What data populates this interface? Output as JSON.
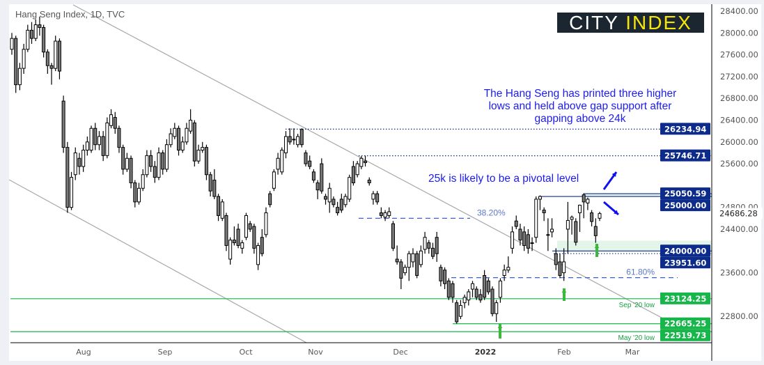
{
  "chart_data": {
    "type": "candlestick",
    "title": "Hang Seng Index, 1D, TVC",
    "ylim": [
      22400,
      28600
    ],
    "y_ticks": [
      28400,
      28000,
      27600,
      27200,
      26800,
      26400,
      26000,
      25600,
      24800,
      24400,
      23600,
      22800
    ],
    "x_ticks": [
      "Aug",
      "Sep",
      "Oct",
      "Nov",
      "Dec",
      "2022",
      "Feb",
      "Mar"
    ],
    "grid": false,
    "ohlc": [
      [
        27700,
        28000,
        27600,
        27900
      ],
      [
        27900,
        27950,
        26900,
        27050
      ],
      [
        27050,
        27450,
        26950,
        27350
      ],
      [
        27350,
        27800,
        27250,
        27700
      ],
      [
        27700,
        28150,
        27650,
        28050
      ],
      [
        28050,
        28200,
        27800,
        27900
      ],
      [
        27900,
        28250,
        27850,
        28150
      ],
      [
        28150,
        28300,
        27950,
        28100
      ],
      [
        28100,
        28150,
        27550,
        27650
      ],
      [
        27650,
        27700,
        27250,
        27400
      ],
      [
        27400,
        27450,
        27050,
        27350
      ],
      [
        27350,
        27950,
        27300,
        27850
      ],
      [
        27850,
        27900,
        27150,
        27300
      ],
      [
        26750,
        26850,
        25800,
        25900
      ],
      [
        25900,
        26000,
        24700,
        24800
      ],
      [
        24800,
        25450,
        24750,
        25350
      ],
      [
        25400,
        25900,
        25300,
        25800
      ],
      [
        25700,
        25800,
        25400,
        25550
      ],
      [
        25550,
        25950,
        25450,
        25850
      ],
      [
        25850,
        26100,
        25750,
        26000
      ],
      [
        25850,
        26300,
        25800,
        26250
      ],
      [
        26250,
        26350,
        25850,
        25950
      ],
      [
        25950,
        26200,
        25850,
        26100
      ],
      [
        26100,
        26200,
        25650,
        25750
      ],
      [
        25750,
        26450,
        25700,
        26350
      ],
      [
        26300,
        26600,
        26250,
        26500
      ],
      [
        26450,
        26550,
        26150,
        26250
      ],
      [
        26250,
        26300,
        25800,
        25900
      ],
      [
        25900,
        25950,
        25400,
        25500
      ],
      [
        25500,
        25800,
        25450,
        25700
      ],
      [
        25700,
        25750,
        25150,
        25250
      ],
      [
        25250,
        25300,
        24800,
        24900
      ],
      [
        24900,
        25250,
        24850,
        25150
      ],
      [
        25150,
        25500,
        25100,
        25400
      ],
      [
        25400,
        25850,
        25350,
        25750
      ],
      [
        25750,
        25850,
        25450,
        25550
      ],
      [
        25550,
        25650,
        25250,
        25350
      ],
      [
        25350,
        25900,
        25300,
        25800
      ],
      [
        25800,
        25850,
        25400,
        25500
      ],
      [
        25500,
        26050,
        25450,
        25950
      ],
      [
        25950,
        26250,
        25900,
        26150
      ],
      [
        26100,
        26350,
        26050,
        26250
      ],
      [
        26250,
        26300,
        25750,
        25850
      ],
      [
        25850,
        26100,
        25800,
        26000
      ],
      [
        26000,
        26350,
        25950,
        26250
      ],
      [
        26200,
        26600,
        26150,
        26400
      ],
      [
        26350,
        26400,
        25550,
        25650
      ],
      [
        25650,
        25950,
        25600,
        25850
      ],
      [
        25850,
        26000,
        25800,
        25900
      ],
      [
        25900,
        25950,
        25300,
        25400
      ],
      [
        25400,
        25450,
        25000,
        25100
      ],
      [
        25300,
        25500,
        24950,
        25000
      ],
      [
        25000,
        25050,
        24550,
        24650
      ],
      [
        24600,
        24950,
        24550,
        24900
      ],
      [
        24650,
        24700,
        24000,
        24100
      ],
      [
        23850,
        24250,
        23750,
        24200
      ],
      [
        24200,
        24450,
        24100,
        24150
      ],
      [
        24400,
        24500,
        24050,
        24100
      ],
      [
        24050,
        24200,
        23950,
        24150
      ],
      [
        24250,
        24700,
        24200,
        24650
      ],
      [
        24500,
        24550,
        24350,
        24400
      ],
      [
        24450,
        24500,
        23950,
        24050
      ],
      [
        23750,
        24150,
        23650,
        24100
      ],
      [
        24250,
        24400,
        23900,
        23950
      ],
      [
        24300,
        24800,
        24250,
        24700
      ],
      [
        25050,
        25100,
        24800,
        24850
      ],
      [
        25150,
        25500,
        25100,
        25450
      ],
      [
        25500,
        25800,
        25400,
        25700
      ],
      [
        25450,
        25900,
        25400,
        25850
      ],
      [
        25800,
        26200,
        25700,
        26100
      ],
      [
        26100,
        26250,
        25950,
        26000
      ],
      [
        26050,
        26250,
        25950,
        26050
      ],
      [
        25950,
        26150,
        25900,
        26100
      ],
      [
        26230,
        26250,
        25900,
        25950
      ],
      [
        25800,
        25850,
        25550,
        25600
      ],
      [
        25650,
        25750,
        25500,
        25550
      ],
      [
        25450,
        25500,
        25250,
        25300
      ],
      [
        25250,
        25300,
        24950,
        25120
      ],
      [
        25600,
        25700,
        25050,
        25100
      ],
      [
        25000,
        25050,
        24850,
        24950
      ],
      [
        24900,
        25250,
        24700,
        25150
      ],
      [
        24950,
        25000,
        24800,
        24850
      ],
      [
        24800,
        24900,
        24650,
        24700
      ],
      [
        24950,
        25050,
        24700,
        24750
      ],
      [
        24850,
        25050,
        24800,
        25000
      ],
      [
        24950,
        25400,
        24900,
        25350
      ],
      [
        25550,
        25650,
        25200,
        25250
      ],
      [
        25400,
        25650,
        25350,
        25600
      ],
      [
        25550,
        25740,
        25500,
        25700
      ],
      [
        25650,
        25747,
        25550,
        25620
      ],
      [
        25300,
        25350,
        25200,
        25250
      ],
      [
        24950,
        25100,
        24850,
        25050
      ],
      [
        25050,
        25100,
        24850,
        24900
      ],
      [
        24700,
        24800,
        24600,
        24650
      ],
      [
        24620,
        24750,
        24550,
        24700
      ],
      [
        24650,
        24800,
        24600,
        24720
      ],
      [
        24500,
        24550,
        24000,
        24050
      ],
      [
        23850,
        24100,
        23750,
        23800
      ],
      [
        23800,
        23850,
        23300,
        23500
      ],
      [
        23600,
        23750,
        23550,
        23700
      ],
      [
        23700,
        24000,
        23450,
        23950
      ],
      [
        23800,
        24050,
        23700,
        23950
      ],
      [
        23950,
        24000,
        23500,
        23550
      ],
      [
        23750,
        24100,
        23700,
        24000
      ],
      [
        24030,
        24350,
        23950,
        24250
      ],
      [
        24150,
        24200,
        23950,
        24050
      ],
      [
        24050,
        24150,
        23850,
        23900
      ],
      [
        24250,
        24350,
        23800,
        23950
      ],
      [
        23700,
        23750,
        23350,
        23450
      ],
      [
        23650,
        23700,
        23300,
        23400
      ],
      [
        23450,
        23500,
        23100,
        23150
      ],
      [
        23400,
        23450,
        23050,
        23150
      ],
      [
        23050,
        23100,
        22665,
        22700
      ],
      [
        22800,
        23100,
        22750,
        23000
      ],
      [
        23050,
        23200,
        22950,
        23150
      ],
      [
        23100,
        23300,
        23000,
        23250
      ],
      [
        23300,
        23450,
        23150,
        23400
      ],
      [
        23300,
        23350,
        23100,
        23150
      ],
      [
        23200,
        23300,
        23050,
        23100
      ],
      [
        23550,
        23650,
        23100,
        23150
      ],
      [
        23450,
        23500,
        23200,
        23250
      ],
      [
        23300,
        23350,
        22800,
        22850
      ],
      [
        22850,
        23100,
        22700,
        23050
      ],
      [
        23150,
        23500,
        23050,
        23450
      ],
      [
        23550,
        23750,
        23450,
        23650
      ],
      [
        23650,
        23900,
        23600,
        23700
      ],
      [
        24050,
        24450,
        23950,
        24350
      ],
      [
        24550,
        24650,
        24400,
        24450
      ],
      [
        24400,
        24500,
        24100,
        24200
      ],
      [
        24350,
        24450,
        24000,
        24100
      ],
      [
        24300,
        24400,
        23950,
        24050
      ],
      [
        24150,
        24250,
        24000,
        24150
      ],
      [
        24250,
        25000,
        24150,
        24950
      ],
      [
        24950,
        25020,
        24750,
        25000
      ],
      [
        24750,
        24800,
        24550,
        24700
      ],
      [
        24300,
        24600,
        24000,
        24300
      ],
      [
        24350,
        24600,
        24250,
        24400
      ],
      [
        23950,
        24050,
        23650,
        23750
      ],
      [
        23800,
        23950,
        23500,
        23550
      ],
      [
        23600,
        24050,
        23450,
        23800
      ],
      [
        24400,
        24900,
        23950,
        24560
      ],
      [
        24580,
        24650,
        24300,
        24620
      ],
      [
        24540,
        24600,
        24100,
        24160
      ],
      [
        24700,
        24850,
        24350,
        24840
      ],
      [
        25030,
        25060,
        24600,
        24900
      ],
      [
        24880,
        24980,
        24750,
        24950
      ],
      [
        24700,
        24750,
        24450,
        24540
      ],
      [
        24450,
        24600,
        24150,
        24280
      ],
      [
        24600,
        24720,
        24550,
        24686
      ]
    ],
    "levels": [
      {
        "value": 26234.94,
        "label": "26234.94",
        "style": "dotted",
        "color": "#0d2b8a"
      },
      {
        "value": 25746.71,
        "label": "25746.71",
        "style": "dotted",
        "color": "#0d2b8a"
      },
      {
        "value": 25050.59,
        "label": "25050.59",
        "style": "solid",
        "color": "#0d2b8a"
      },
      {
        "value": 25000.0,
        "label": "25000.00",
        "style": "solid",
        "color": "#0d2b8a"
      },
      {
        "value": 24000.0,
        "label": "24000.00",
        "style": "solid",
        "color": "#0d2b8a"
      },
      {
        "value": 23951.6,
        "label": "23951.60",
        "style": "dotted",
        "color": "#0d2b8a"
      },
      {
        "value": 23124.25,
        "label": "23124.25",
        "style": "solid",
        "color": "#16b64a",
        "note": "Sep '20 low"
      },
      {
        "value": 22665.25,
        "label": "22665.25",
        "style": "solid",
        "color": "#16b64a"
      },
      {
        "value": 22519.73,
        "label": "22519.73",
        "style": "solid",
        "color": "#16b64a",
        "note": "May '20 low"
      }
    ],
    "last_price": "24686.28",
    "fib": [
      {
        "label": "38.20%",
        "value": 24600
      },
      {
        "label": "61.80%",
        "value": 23510
      }
    ],
    "annotations": [
      "The Hang Seng has printed three higher lows and held above gap support after gapping above 24k",
      "25k is likely to be a pivotal level"
    ],
    "colors": {
      "up": "#ffffff",
      "down": "#7a7a7a",
      "level": "#0d2b8a",
      "support": "#16b64a",
      "text": "#1c1cf0",
      "zone": "#e3f5e8"
    }
  },
  "logo": {
    "city": "CITY",
    "index": "INDEX"
  },
  "note1": [
    "The Hang Seng has printed three higher",
    "lows and held above gap support after",
    "gapping above 24k"
  ],
  "note2": "25k is likely to be a pivotal level"
}
